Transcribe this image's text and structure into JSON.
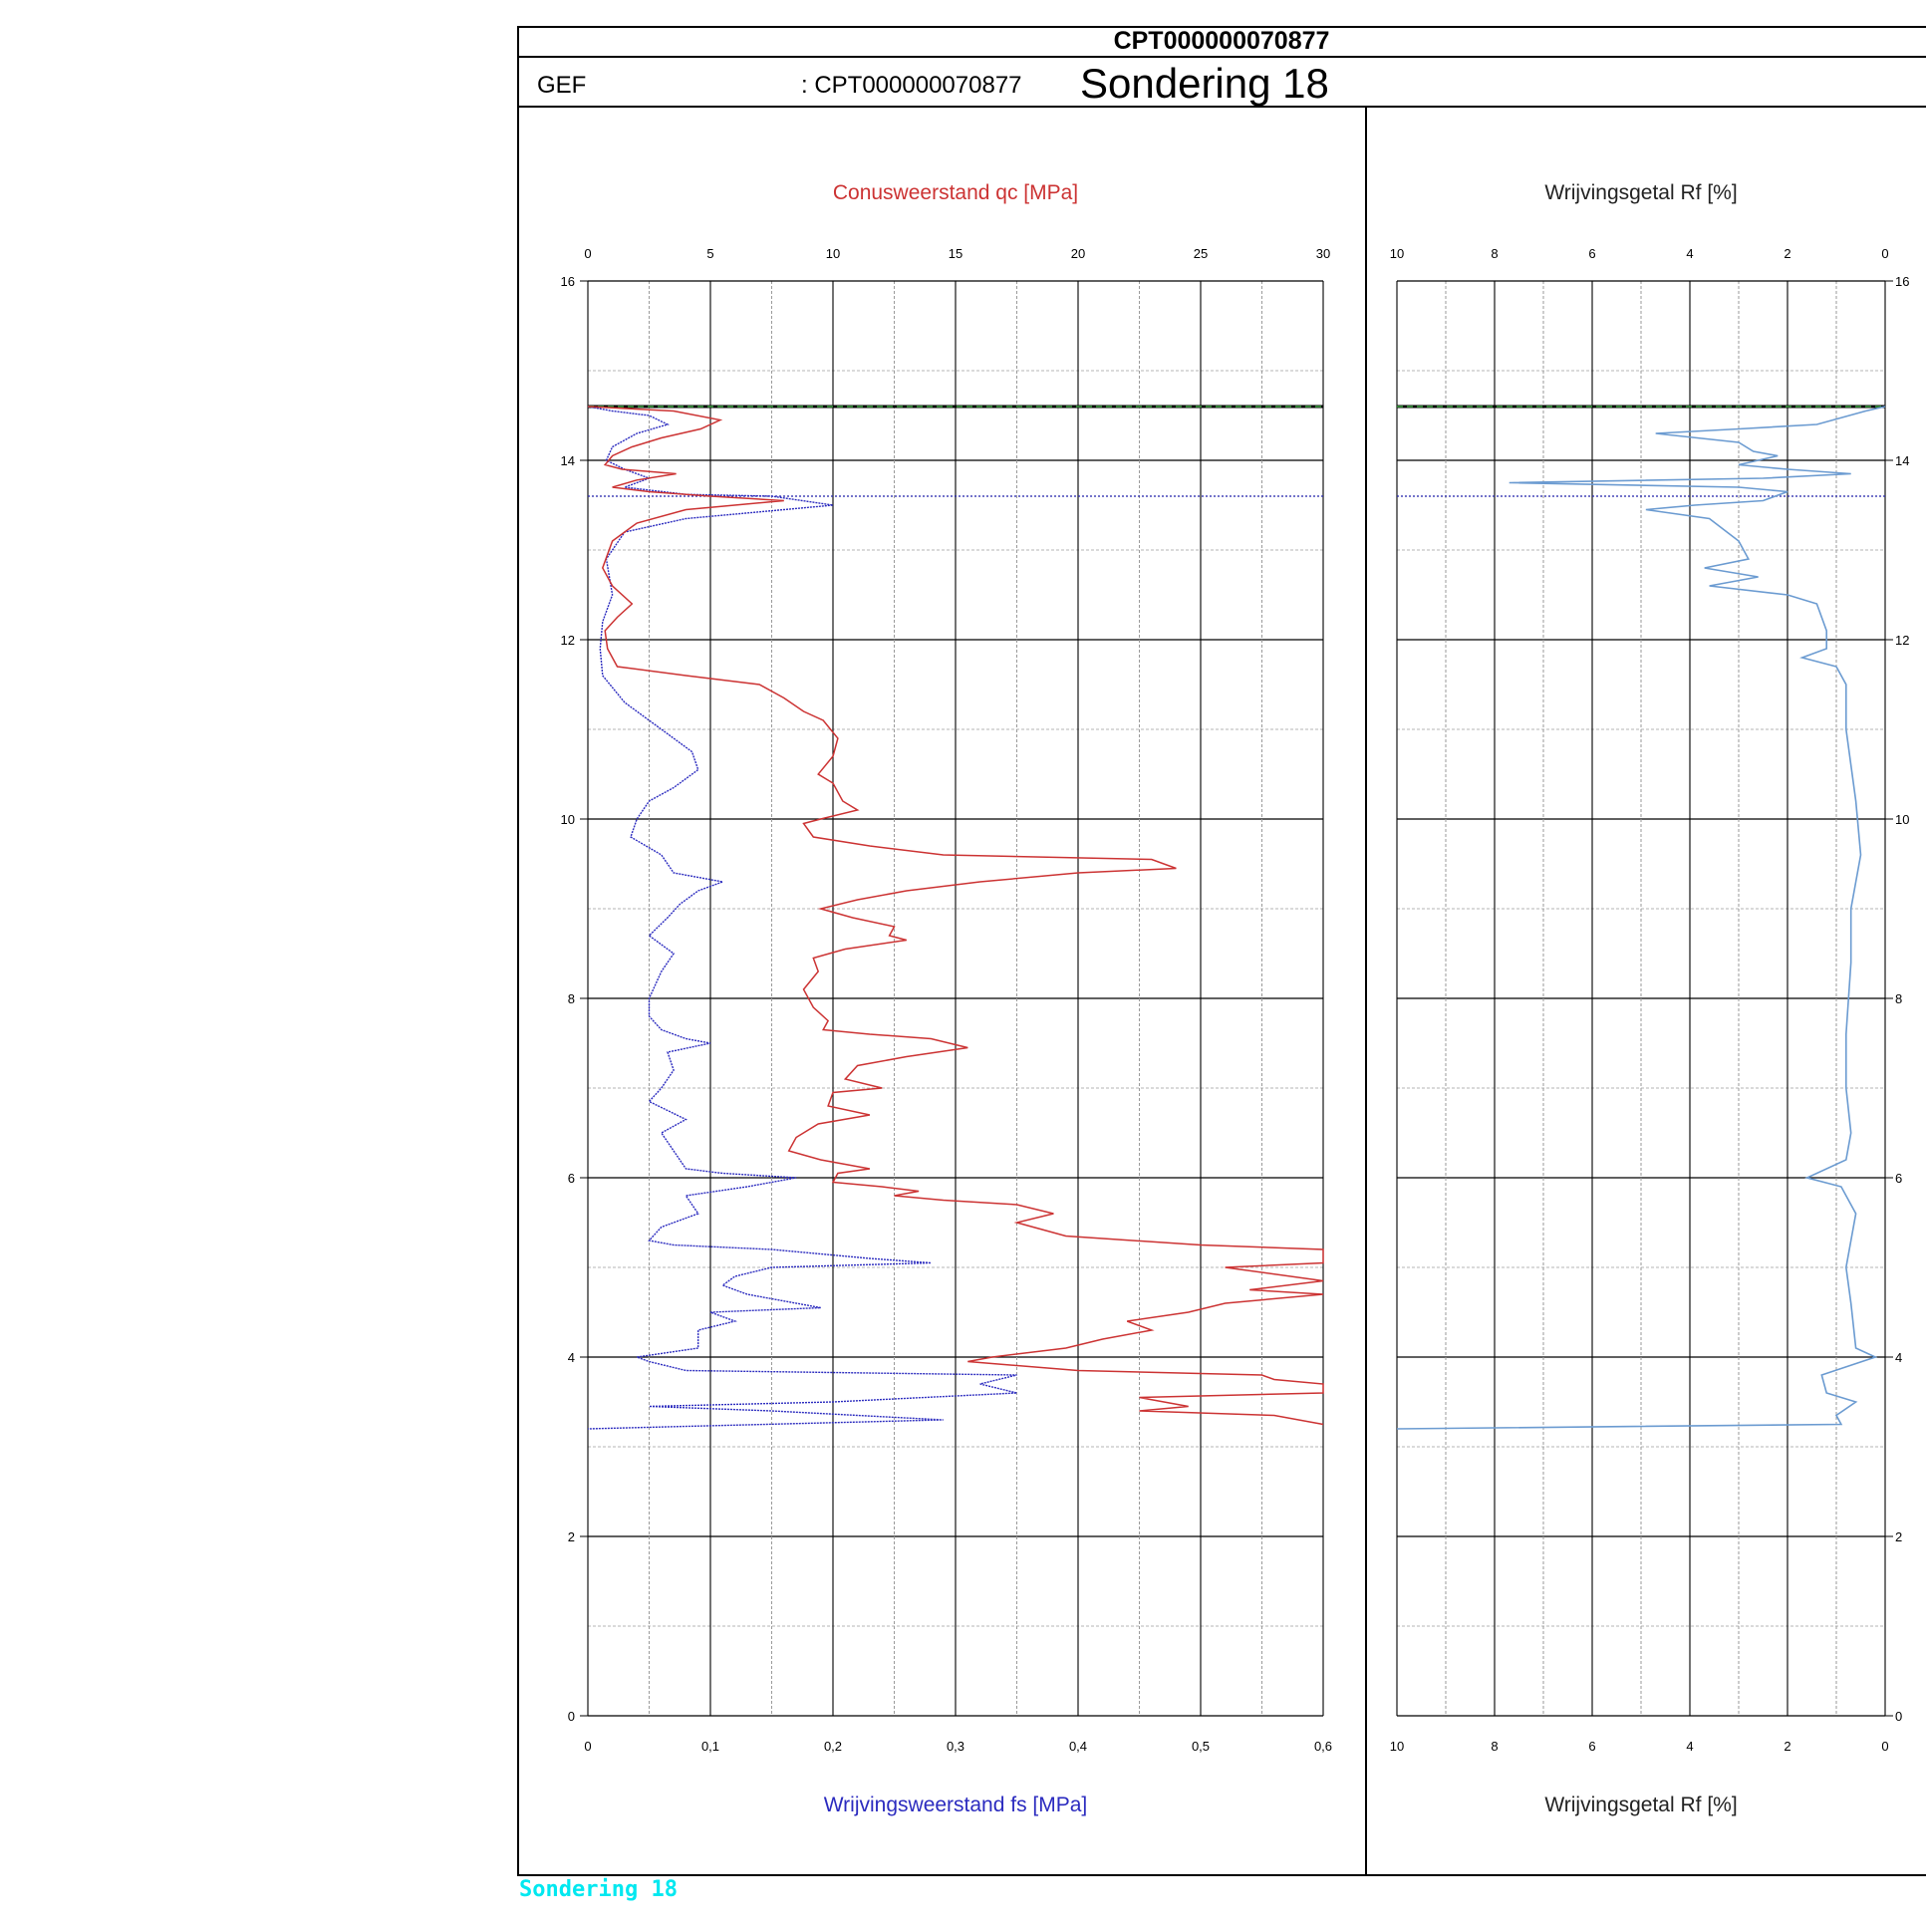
{
  "header": {
    "title": "CPT000000070877",
    "gef_label": "GEF",
    "gef_id": ": CPT000000070877",
    "name": "Sondering 18"
  },
  "footer": {
    "label": "Sondering 18"
  },
  "colors": {
    "qc": "#cc3333",
    "fs": "#2b2bbf",
    "rf": "#6b9bd1",
    "groundwater": "#2e7d32"
  },
  "chart_data": [
    {
      "type": "line",
      "title": "",
      "top_label": "Conusweerstand qc [MPa]",
      "bottom_label": "Wrijvingsweerstand fs [MPa]",
      "x_top": {
        "range": [
          0,
          30
        ],
        "ticks": [
          "0",
          "5",
          "10",
          "15",
          "20",
          "25",
          "30"
        ]
      },
      "x_bottom": {
        "range": [
          0,
          0.6
        ],
        "ticks": [
          "0",
          "0,1",
          "0,2",
          "0,3",
          "0,4",
          "0,5",
          "0,6"
        ]
      },
      "y": {
        "range": [
          0,
          16
        ],
        "ticks": [
          "0",
          "2",
          "4",
          "6",
          "8",
          "10",
          "12",
          "14",
          "16"
        ],
        "minor_step": 1
      },
      "grid": true,
      "groundwater_level": 14.6,
      "reference_level": 13.6,
      "series": [
        {
          "name": "Conusweerstand qc [MPa]",
          "axis": "top",
          "points": [
            [
              0,
              14.6
            ],
            [
              3.5,
              14.55
            ],
            [
              5.4,
              14.45
            ],
            [
              4.6,
              14.35
            ],
            [
              3.0,
              14.25
            ],
            [
              1.8,
              14.15
            ],
            [
              1.0,
              14.05
            ],
            [
              0.7,
              13.95
            ],
            [
              1.4,
              13.9
            ],
            [
              3.6,
              13.85
            ],
            [
              2.0,
              13.78
            ],
            [
              1.0,
              13.7
            ],
            [
              2.5,
              13.65
            ],
            [
              5.0,
              13.6
            ],
            [
              8.0,
              13.55
            ],
            [
              4.0,
              13.45
            ],
            [
              2.0,
              13.3
            ],
            [
              1.0,
              13.1
            ],
            [
              0.6,
              12.8
            ],
            [
              1.0,
              12.6
            ],
            [
              1.8,
              12.4
            ],
            [
              1.2,
              12.25
            ],
            [
              0.7,
              12.1
            ],
            [
              0.8,
              11.9
            ],
            [
              1.2,
              11.7
            ],
            [
              4.0,
              11.6
            ],
            [
              7.0,
              11.5
            ],
            [
              8.0,
              11.35
            ],
            [
              8.8,
              11.2
            ],
            [
              9.6,
              11.1
            ],
            [
              10.2,
              10.9
            ],
            [
              10.0,
              10.7
            ],
            [
              9.4,
              10.5
            ],
            [
              10.0,
              10.4
            ],
            [
              10.4,
              10.2
            ],
            [
              11.0,
              10.1
            ],
            [
              9.5,
              10.0
            ],
            [
              8.8,
              9.95
            ],
            [
              9.2,
              9.8
            ],
            [
              11.5,
              9.7
            ],
            [
              14.5,
              9.6
            ],
            [
              23.0,
              9.55
            ],
            [
              24.0,
              9.45
            ],
            [
              20.0,
              9.4
            ],
            [
              16.0,
              9.3
            ],
            [
              13.0,
              9.2
            ],
            [
              11.0,
              9.1
            ],
            [
              9.5,
              9.0
            ],
            [
              10.8,
              8.9
            ],
            [
              12.5,
              8.8
            ],
            [
              12.3,
              8.7
            ],
            [
              13.0,
              8.65
            ],
            [
              10.5,
              8.55
            ],
            [
              9.2,
              8.45
            ],
            [
              9.4,
              8.3
            ],
            [
              8.8,
              8.1
            ],
            [
              9.2,
              7.9
            ],
            [
              9.8,
              7.75
            ],
            [
              9.6,
              7.65
            ],
            [
              11.5,
              7.6
            ],
            [
              14.0,
              7.55
            ],
            [
              15.5,
              7.45
            ],
            [
              13.0,
              7.35
            ],
            [
              11.0,
              7.25
            ],
            [
              10.5,
              7.1
            ],
            [
              12.0,
              7.0
            ],
            [
              10.0,
              6.95
            ],
            [
              9.8,
              6.8
            ],
            [
              11.5,
              6.7
            ],
            [
              9.4,
              6.6
            ],
            [
              8.5,
              6.45
            ],
            [
              8.2,
              6.3
            ],
            [
              9.5,
              6.2
            ],
            [
              11.5,
              6.1
            ],
            [
              10.2,
              6.05
            ],
            [
              10.0,
              5.95
            ],
            [
              12.0,
              5.9
            ],
            [
              13.5,
              5.85
            ],
            [
              12.5,
              5.8
            ],
            [
              14.5,
              5.75
            ],
            [
              17.5,
              5.7
            ],
            [
              19.0,
              5.6
            ],
            [
              17.5,
              5.5
            ],
            [
              19.5,
              5.35
            ],
            [
              25.0,
              5.25
            ],
            [
              30.0,
              5.2
            ],
            [
              30.0,
              5.05
            ],
            [
              26.0,
              5.0
            ],
            [
              30.0,
              4.85
            ],
            [
              27.0,
              4.75
            ],
            [
              30.0,
              4.7
            ],
            [
              26.0,
              4.6
            ],
            [
              24.5,
              4.5
            ],
            [
              22.0,
              4.4
            ],
            [
              23.0,
              4.3
            ],
            [
              21.0,
              4.2
            ],
            [
              19.5,
              4.1
            ],
            [
              16.5,
              4.0
            ],
            [
              15.5,
              3.95
            ],
            [
              20.0,
              3.85
            ],
            [
              27.5,
              3.8
            ],
            [
              28.0,
              3.75
            ],
            [
              30.0,
              3.7
            ],
            [
              30.0,
              3.6
            ],
            [
              22.5,
              3.55
            ],
            [
              23.5,
              3.5
            ],
            [
              24.5,
              3.45
            ],
            [
              22.5,
              3.4
            ],
            [
              28.0,
              3.35
            ],
            [
              30.0,
              3.25
            ]
          ]
        },
        {
          "name": "Wrijvingsweerstand fs [MPa]",
          "axis": "bottom",
          "points": [
            [
              0,
              14.6
            ],
            [
              0.02,
              14.55
            ],
            [
              0.05,
              14.5
            ],
            [
              0.065,
              14.4
            ],
            [
              0.04,
              14.3
            ],
            [
              0.02,
              14.15
            ],
            [
              0.015,
              14.0
            ],
            [
              0.03,
              13.9
            ],
            [
              0.05,
              13.8
            ],
            [
              0.03,
              13.7
            ],
            [
              0.08,
              13.62
            ],
            [
              0.15,
              13.6
            ],
            [
              0.2,
              13.5
            ],
            [
              0.16,
              13.45
            ],
            [
              0.08,
              13.35
            ],
            [
              0.03,
              13.2
            ],
            [
              0.015,
              12.9
            ],
            [
              0.02,
              12.5
            ],
            [
              0.012,
              12.2
            ],
            [
              0.01,
              11.9
            ],
            [
              0.012,
              11.6
            ],
            [
              0.03,
              11.3
            ],
            [
              0.05,
              11.1
            ],
            [
              0.07,
              10.9
            ],
            [
              0.085,
              10.75
            ],
            [
              0.09,
              10.55
            ],
            [
              0.07,
              10.35
            ],
            [
              0.05,
              10.2
            ],
            [
              0.04,
              10.0
            ],
            [
              0.035,
              9.8
            ],
            [
              0.06,
              9.6
            ],
            [
              0.07,
              9.4
            ],
            [
              0.11,
              9.3
            ],
            [
              0.09,
              9.2
            ],
            [
              0.075,
              9.05
            ],
            [
              0.065,
              8.9
            ],
            [
              0.05,
              8.7
            ],
            [
              0.07,
              8.5
            ],
            [
              0.06,
              8.3
            ],
            [
              0.05,
              8.0
            ],
            [
              0.05,
              7.8
            ],
            [
              0.06,
              7.65
            ],
            [
              0.08,
              7.55
            ],
            [
              0.1,
              7.5
            ],
            [
              0.065,
              7.4
            ],
            [
              0.07,
              7.2
            ],
            [
              0.06,
              7.0
            ],
            [
              0.05,
              6.85
            ],
            [
              0.08,
              6.65
            ],
            [
              0.06,
              6.5
            ],
            [
              0.07,
              6.3
            ],
            [
              0.08,
              6.1
            ],
            [
              0.11,
              6.05
            ],
            [
              0.17,
              6.0
            ],
            [
              0.13,
              5.9
            ],
            [
              0.08,
              5.8
            ],
            [
              0.09,
              5.6
            ],
            [
              0.06,
              5.45
            ],
            [
              0.05,
              5.3
            ],
            [
              0.07,
              5.25
            ],
            [
              0.15,
              5.2
            ],
            [
              0.23,
              5.1
            ],
            [
              0.28,
              5.05
            ],
            [
              0.15,
              5.0
            ],
            [
              0.12,
              4.9
            ],
            [
              0.11,
              4.8
            ],
            [
              0.13,
              4.7
            ],
            [
              0.19,
              4.55
            ],
            [
              0.1,
              4.5
            ],
            [
              0.12,
              4.4
            ],
            [
              0.09,
              4.3
            ],
            [
              0.09,
              4.1
            ],
            [
              0.04,
              4.0
            ],
            [
              0.05,
              3.95
            ],
            [
              0.08,
              3.85
            ],
            [
              0.35,
              3.8
            ],
            [
              0.32,
              3.7
            ],
            [
              0.35,
              3.6
            ],
            [
              0.2,
              3.5
            ],
            [
              0.05,
              3.45
            ],
            [
              0.15,
              3.4
            ],
            [
              0.29,
              3.3
            ],
            [
              0.0,
              3.2
            ]
          ]
        }
      ]
    },
    {
      "type": "line",
      "title": "",
      "top_label": "Wrijvingsgetal Rf [%]",
      "bottom_label": "Wrijvingsgetal Rf [%]",
      "x": {
        "range": [
          10,
          0
        ],
        "reversed": true,
        "ticks": [
          "10",
          "8",
          "6",
          "4",
          "2",
          "0"
        ]
      },
      "y": {
        "range": [
          0,
          16
        ],
        "ticks": [
          "0",
          "2",
          "4",
          "6",
          "8",
          "10",
          "12",
          "14",
          "16"
        ],
        "minor_step": 1
      },
      "grid": true,
      "groundwater_level": 14.6,
      "reference_level": 13.6,
      "series": [
        {
          "name": "Wrijvingsgetal Rf [%]",
          "points": [
            [
              0,
              14.6
            ],
            [
              0.4,
              14.55
            ],
            [
              1.4,
              14.4
            ],
            [
              3.0,
              14.35
            ],
            [
              4.7,
              14.3
            ],
            [
              3.0,
              14.2
            ],
            [
              2.7,
              14.1
            ],
            [
              2.2,
              14.05
            ],
            [
              3.0,
              13.95
            ],
            [
              2.0,
              13.9
            ],
            [
              0.7,
              13.85
            ],
            [
              2.5,
              13.8
            ],
            [
              7.7,
              13.75
            ],
            [
              3.0,
              13.7
            ],
            [
              2.0,
              13.65
            ],
            [
              2.5,
              13.55
            ],
            [
              3.9,
              13.5
            ],
            [
              4.9,
              13.45
            ],
            [
              3.6,
              13.35
            ],
            [
              3.0,
              13.1
            ],
            [
              2.8,
              12.9
            ],
            [
              3.7,
              12.8
            ],
            [
              2.6,
              12.7
            ],
            [
              3.6,
              12.6
            ],
            [
              2.0,
              12.5
            ],
            [
              1.4,
              12.4
            ],
            [
              1.2,
              12.1
            ],
            [
              1.2,
              11.9
            ],
            [
              1.7,
              11.8
            ],
            [
              1.0,
              11.7
            ],
            [
              0.8,
              11.5
            ],
            [
              0.8,
              11.0
            ],
            [
              0.7,
              10.6
            ],
            [
              0.6,
              10.2
            ],
            [
              0.5,
              9.6
            ],
            [
              0.7,
              9.0
            ],
            [
              0.7,
              8.4
            ],
            [
              0.8,
              7.6
            ],
            [
              0.8,
              7.0
            ],
            [
              0.7,
              6.5
            ],
            [
              0.8,
              6.2
            ],
            [
              1.6,
              6.0
            ],
            [
              0.9,
              5.9
            ],
            [
              0.6,
              5.6
            ],
            [
              0.8,
              5.0
            ],
            [
              0.7,
              4.6
            ],
            [
              0.6,
              4.1
            ],
            [
              0.2,
              4.0
            ],
            [
              1.3,
              3.8
            ],
            [
              1.2,
              3.6
            ],
            [
              0.6,
              3.5
            ],
            [
              1.0,
              3.35
            ],
            [
              0.9,
              3.25
            ],
            [
              10.0,
              3.2
            ]
          ]
        }
      ]
    }
  ]
}
